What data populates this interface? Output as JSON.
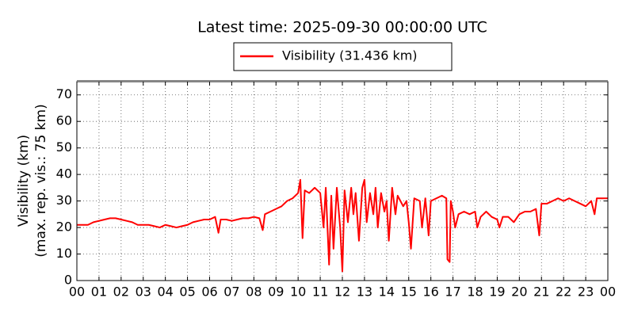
{
  "chart_data": {
    "type": "line",
    "title": "Latest time: 2025-09-30 00:00:00 UTC",
    "ylabel": [
      "Visibility (km)",
      "(max. rep. vis.: 75 km)"
    ],
    "series": [
      {
        "name": "Visibility (31.436 km)",
        "color": "#ff0000",
        "x": [
          0,
          0.25,
          0.5,
          0.75,
          1,
          1.25,
          1.5,
          1.75,
          2,
          2.25,
          2.5,
          2.75,
          3,
          3.25,
          3.5,
          3.75,
          4,
          4.25,
          4.5,
          4.75,
          5,
          5.25,
          5.5,
          5.75,
          6,
          6.25,
          6.4,
          6.5,
          6.75,
          7,
          7.25,
          7.5,
          7.75,
          8,
          8.25,
          8.4,
          8.5,
          8.75,
          9,
          9.25,
          9.5,
          9.75,
          10,
          10.1,
          10.2,
          10.3,
          10.5,
          10.75,
          11,
          11.15,
          11.25,
          11.4,
          11.5,
          11.6,
          11.75,
          11.9,
          12,
          12.1,
          12.25,
          12.4,
          12.5,
          12.6,
          12.75,
          12.9,
          13,
          13.1,
          13.25,
          13.4,
          13.5,
          13.6,
          13.75,
          13.9,
          14,
          14.1,
          14.25,
          14.4,
          14.5,
          14.75,
          14.9,
          15,
          15.1,
          15.25,
          15.5,
          15.6,
          15.75,
          15.9,
          16,
          16.25,
          16.5,
          16.7,
          16.75,
          16.85,
          16.9,
          17,
          17.1,
          17.25,
          17.5,
          17.75,
          18,
          18.1,
          18.25,
          18.5,
          18.75,
          19,
          19.1,
          19.25,
          19.5,
          19.75,
          20,
          20.25,
          20.5,
          20.75,
          20.9,
          21,
          21.25,
          21.5,
          21.75,
          22,
          22.25,
          22.5,
          22.75,
          23,
          23.25,
          23.4,
          23.5,
          23.75,
          24
        ],
        "values": [
          21,
          21,
          21,
          22,
          22.5,
          23,
          23.5,
          23.5,
          23,
          22.5,
          22,
          21,
          21,
          21,
          20.5,
          20,
          21,
          20.5,
          20,
          20.5,
          21,
          22,
          22.5,
          23,
          23,
          24,
          18,
          23,
          23,
          22.5,
          23,
          23.5,
          23.5,
          24,
          23.5,
          19,
          25,
          26,
          27,
          28,
          30,
          31,
          33,
          38,
          16,
          34,
          33,
          35,
          33,
          20,
          35,
          6,
          32,
          12,
          35,
          20,
          3.5,
          34,
          22,
          35,
          25,
          33,
          15,
          35,
          38,
          22,
          33,
          25,
          35,
          20,
          33,
          26,
          30,
          15,
          35,
          25,
          32,
          28,
          30,
          22,
          12,
          31,
          30,
          20,
          31,
          17,
          30,
          31,
          32,
          31,
          8,
          7,
          30,
          26,
          20,
          25,
          26,
          25,
          26,
          20,
          24,
          26,
          24,
          23,
          20,
          24,
          24,
          22,
          25,
          26,
          26,
          27,
          17,
          29,
          29,
          30,
          31,
          30,
          31,
          30,
          29,
          28,
          30,
          25,
          31,
          31,
          31
        ]
      }
    ],
    "xlim": [
      0,
      24
    ],
    "ylim": [
      0,
      75
    ],
    "xticks": [
      {
        "value": 0,
        "label": "00"
      },
      {
        "value": 1,
        "label": "01"
      },
      {
        "value": 2,
        "label": "02"
      },
      {
        "value": 3,
        "label": "03"
      },
      {
        "value": 4,
        "label": "04"
      },
      {
        "value": 5,
        "label": "05"
      },
      {
        "value": 6,
        "label": "06"
      },
      {
        "value": 7,
        "label": "07"
      },
      {
        "value": 8,
        "label": "08"
      },
      {
        "value": 9,
        "label": "09"
      },
      {
        "value": 10,
        "label": "10"
      },
      {
        "value": 11,
        "label": "11"
      },
      {
        "value": 12,
        "label": "12"
      },
      {
        "value": 13,
        "label": "13"
      },
      {
        "value": 14,
        "label": "14"
      },
      {
        "value": 15,
        "label": "15"
      },
      {
        "value": 16,
        "label": "16"
      },
      {
        "value": 17,
        "label": "17"
      },
      {
        "value": 18,
        "label": "18"
      },
      {
        "value": 19,
        "label": "19"
      },
      {
        "value": 20,
        "label": "20"
      },
      {
        "value": 21,
        "label": "21"
      },
      {
        "value": 22,
        "label": "22"
      },
      {
        "value": 23,
        "label": "23"
      },
      {
        "value": 24,
        "label": "00"
      }
    ],
    "yticks": [
      0,
      10,
      20,
      30,
      40,
      50,
      60,
      70
    ],
    "grid": true,
    "legend": "top"
  }
}
